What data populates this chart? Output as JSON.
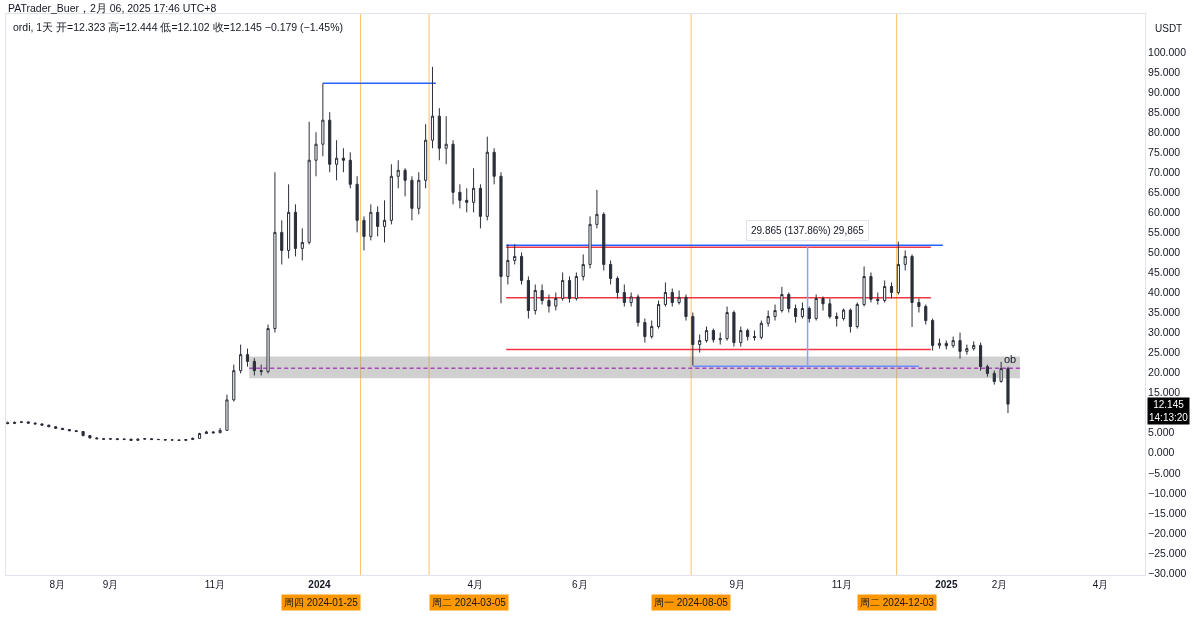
{
  "chart_data": {
    "type": "candlestick",
    "title": "PATrader_Buer，2月 06, 2025 17:46 UTC+8",
    "subtitle": "ordi, 1天 开=12.323 高=12.444 低=12.102 收=12.145 −0.179 (−1.45%)",
    "ylabel": "USDT",
    "color": "#2a2e39",
    "marker": "none",
    "x": [
      "2023-07-03",
      "2023-07-07",
      "2023-07-11",
      "2023-07-15",
      "2023-07-19",
      "2023-07-23",
      "2023-07-27",
      "2023-07-31",
      "2023-08-04",
      "2023-08-08",
      "2023-08-12",
      "2023-08-16",
      "2023-08-20",
      "2023-08-24",
      "2023-08-28",
      "2023-09-01",
      "2023-09-05",
      "2023-09-09",
      "2023-09-13",
      "2023-09-17",
      "2023-09-21",
      "2023-09-25",
      "2023-09-29",
      "2023-10-03",
      "2023-10-07",
      "2023-10-11",
      "2023-10-15",
      "2023-10-19",
      "2023-10-23",
      "2023-10-27",
      "2023-10-31",
      "2023-11-04",
      "2023-11-08",
      "2023-11-12",
      "2023-11-16",
      "2023-11-20",
      "2023-11-24",
      "2023-11-28",
      "2023-12-02",
      "2023-12-06",
      "2023-12-10",
      "2023-12-14",
      "2023-12-18",
      "2023-12-22",
      "2023-12-26",
      "2023-12-30",
      "2024-01-03",
      "2024-01-07",
      "2024-01-11",
      "2024-01-15",
      "2024-01-19",
      "2024-01-23",
      "2024-01-27",
      "2024-01-31",
      "2024-02-04",
      "2024-02-08",
      "2024-02-12",
      "2024-02-16",
      "2024-02-20",
      "2024-02-24",
      "2024-02-28",
      "2024-03-03",
      "2024-03-07",
      "2024-03-11",
      "2024-03-15",
      "2024-03-19",
      "2024-03-23",
      "2024-03-27",
      "2024-03-31",
      "2024-04-04",
      "2024-04-08",
      "2024-04-12",
      "2024-04-16",
      "2024-04-20",
      "2024-04-24",
      "2024-04-28",
      "2024-05-02",
      "2024-05-06",
      "2024-05-10",
      "2024-05-14",
      "2024-05-18",
      "2024-05-22",
      "2024-05-26",
      "2024-05-30",
      "2024-06-03",
      "2024-06-07",
      "2024-06-11",
      "2024-06-15",
      "2024-06-19",
      "2024-06-23",
      "2024-06-27",
      "2024-07-01",
      "2024-07-05",
      "2024-07-09",
      "2024-07-13",
      "2024-07-17",
      "2024-07-21",
      "2024-07-25",
      "2024-07-29",
      "2024-08-02",
      "2024-08-06",
      "2024-08-10",
      "2024-08-14",
      "2024-08-18",
      "2024-08-22",
      "2024-08-26",
      "2024-08-30",
      "2024-09-03",
      "2024-09-07",
      "2024-09-11",
      "2024-09-15",
      "2024-09-19",
      "2024-09-23",
      "2024-09-27",
      "2024-10-01",
      "2024-10-05",
      "2024-10-09",
      "2024-10-13",
      "2024-10-17",
      "2024-10-21",
      "2024-10-25",
      "2024-10-29",
      "2024-11-02",
      "2024-11-06",
      "2024-11-10",
      "2024-11-14",
      "2024-11-18",
      "2024-11-22",
      "2024-11-26",
      "2024-11-30",
      "2024-12-04",
      "2024-12-08",
      "2024-12-12",
      "2024-12-16",
      "2024-12-20",
      "2024-12-24",
      "2024-12-28",
      "2025-01-01",
      "2025-01-05",
      "2025-01-09",
      "2025-01-13",
      "2025-01-17",
      "2025-01-21",
      "2025-01-25",
      "2025-01-29",
      "2025-02-02",
      "2025-02-06"
    ],
    "ohlc": [
      [
        7.5,
        7.8,
        7.1,
        7.3
      ],
      [
        7.3,
        7.8,
        7.2,
        7.6
      ],
      [
        7.6,
        7.9,
        7.4,
        7.7
      ],
      [
        7.7,
        7.8,
        7.3,
        7.4
      ],
      [
        7.4,
        7.6,
        7.1,
        7.2
      ],
      [
        7.2,
        7.3,
        6.8,
        6.9
      ],
      [
        6.9,
        7.0,
        6.4,
        6.5
      ],
      [
        6.5,
        6.6,
        6.0,
        6.1
      ],
      [
        6.1,
        6.2,
        5.7,
        5.8
      ],
      [
        5.8,
        5.9,
        5.4,
        5.5
      ],
      [
        5.5,
        5.7,
        5.2,
        5.3
      ],
      [
        5.3,
        5.4,
        4.1,
        4.3
      ],
      [
        4.3,
        4.4,
        3.6,
        3.7
      ],
      [
        3.7,
        3.9,
        3.4,
        3.5
      ],
      [
        3.5,
        3.7,
        3.3,
        3.4
      ],
      [
        3.4,
        3.7,
        3.3,
        3.5
      ],
      [
        3.5,
        3.6,
        3.2,
        3.3
      ],
      [
        3.3,
        3.6,
        3.2,
        3.4
      ],
      [
        3.4,
        3.5,
        3.0,
        3.1
      ],
      [
        3.1,
        3.6,
        3.0,
        3.4
      ],
      [
        3.4,
        3.7,
        3.3,
        3.5
      ],
      [
        3.5,
        3.6,
        3.2,
        3.3
      ],
      [
        3.3,
        3.5,
        3.2,
        3.3
      ],
      [
        3.3,
        3.4,
        3.1,
        3.2
      ],
      [
        3.2,
        3.3,
        3.1,
        3.2
      ],
      [
        3.2,
        3.3,
        3.0,
        3.1
      ],
      [
        3.1,
        3.4,
        3.0,
        3.3
      ],
      [
        3.3,
        3.8,
        3.2,
        3.6
      ],
      [
        3.6,
        5.0,
        3.5,
        4.8
      ],
      [
        4.8,
        5.5,
        4.7,
        5.2
      ],
      [
        5.2,
        5.4,
        4.8,
        5.0
      ],
      [
        5.0,
        6.2,
        4.9,
        5.6
      ],
      [
        5.6,
        14.5,
        5.5,
        13.2
      ],
      [
        13.2,
        22.0,
        12.8,
        20.5
      ],
      [
        20.5,
        27.0,
        19.8,
        24.5
      ],
      [
        24.5,
        26.0,
        21.5,
        22.8
      ],
      [
        22.8,
        23.6,
        19.3,
        20.5
      ],
      [
        20.5,
        22.0,
        19.3,
        20.3
      ],
      [
        20.3,
        32.0,
        19.8,
        31.0
      ],
      [
        31.0,
        70.0,
        30.0,
        55.0
      ],
      [
        55.0,
        58.0,
        47.0,
        50.5
      ],
      [
        50.5,
        67.0,
        48.5,
        60.0
      ],
      [
        60.0,
        62.0,
        49.0,
        51.0
      ],
      [
        51.0,
        56.0,
        48.0,
        52.5
      ],
      [
        52.5,
        82.6,
        52.0,
        73.0
      ],
      [
        73.0,
        80.0,
        69.0,
        77.0
      ],
      [
        77.0,
        92.2,
        74.0,
        83.0
      ],
      [
        83.0,
        85.0,
        70.0,
        72.0
      ],
      [
        72.0,
        78.0,
        68.0,
        73.5
      ],
      [
        73.5,
        76.0,
        70.0,
        73.0
      ],
      [
        73.0,
        75.0,
        66.0,
        67.0
      ],
      [
        67.0,
        69.0,
        55.0,
        58.0
      ],
      [
        58.0,
        59.0,
        50.5,
        54.0
      ],
      [
        54.0,
        62.0,
        53.0,
        60.0
      ],
      [
        60.0,
        61.5,
        54.0,
        56.5
      ],
      [
        56.5,
        63.0,
        52.5,
        58.0
      ],
      [
        58.0,
        72.0,
        57.0,
        69.0
      ],
      [
        69.0,
        73.0,
        66.0,
        70.5
      ],
      [
        70.5,
        71.0,
        64.0,
        68.0
      ],
      [
        68.0,
        69.0,
        58.0,
        61.0
      ],
      [
        61.0,
        70.0,
        59.5,
        68.0
      ],
      [
        68.0,
        82.0,
        66.0,
        78.0
      ],
      [
        78.0,
        96.3,
        76.0,
        84.0
      ],
      [
        84.0,
        86.0,
        73.0,
        76.0
      ],
      [
        76.0,
        84.0,
        72.0,
        77.0
      ],
      [
        77.0,
        78.0,
        62.0,
        65.0
      ],
      [
        65.0,
        67.0,
        61.0,
        63.0
      ],
      [
        63.0,
        66.0,
        60.0,
        62.5
      ],
      [
        62.5,
        71.0,
        60.0,
        66.0
      ],
      [
        66.0,
        67.0,
        56.0,
        59.0
      ],
      [
        59.0,
        78.9,
        58.0,
        75.0
      ],
      [
        75.0,
        76.0,
        67.0,
        69.0
      ],
      [
        69.0,
        70.0,
        37.3,
        44.0
      ],
      [
        44.0,
        52.0,
        42.0,
        48.0
      ],
      [
        48.0,
        52.0,
        47.0,
        49.0
      ],
      [
        49.0,
        50.0,
        42.0,
        43.0
      ],
      [
        43.0,
        44.0,
        33.5,
        35.5
      ],
      [
        35.5,
        42.0,
        34.5,
        40.5
      ],
      [
        40.5,
        42.0,
        37.0,
        38.0
      ],
      [
        38.0,
        39.5,
        35.0,
        36.6
      ],
      [
        36.6,
        40.0,
        35.5,
        38.5
      ],
      [
        38.5,
        45.0,
        38.0,
        43.0
      ],
      [
        43.0,
        44.0,
        37.5,
        38.5
      ],
      [
        38.5,
        45.0,
        38.0,
        44.0
      ],
      [
        44.0,
        49.5,
        43.0,
        47.0
      ],
      [
        47.0,
        59.0,
        46.0,
        57.0
      ],
      [
        57.0,
        65.6,
        56.0,
        59.5
      ],
      [
        59.5,
        60.0,
        45.5,
        47.0
      ],
      [
        47.0,
        48.0,
        42.0,
        43.5
      ],
      [
        43.5,
        44.0,
        38.5,
        40.0
      ],
      [
        40.0,
        42.0,
        36.5,
        37.5
      ],
      [
        37.5,
        40.0,
        36.5,
        38.9
      ],
      [
        38.9,
        39.5,
        31.5,
        32.5
      ],
      [
        32.5,
        33.5,
        27.5,
        29.0
      ],
      [
        29.0,
        33.0,
        28.5,
        31.5
      ],
      [
        31.5,
        38.0,
        31.0,
        37.0
      ],
      [
        37.0,
        42.5,
        36.5,
        40.0
      ],
      [
        40.0,
        41.0,
        36.5,
        37.5
      ],
      [
        37.5,
        40.5,
        37.0,
        38.8
      ],
      [
        38.8,
        39.5,
        33.0,
        34.0
      ],
      [
        34.0,
        35.0,
        21.8,
        27.0
      ],
      [
        27.0,
        29.5,
        25.0,
        28.0
      ],
      [
        28.0,
        31.5,
        27.5,
        30.5
      ],
      [
        30.5,
        31.0,
        27.5,
        28.2
      ],
      [
        28.2,
        30.0,
        27.0,
        28.5
      ],
      [
        28.5,
        36.5,
        28.0,
        35.0
      ],
      [
        35.0,
        35.5,
        26.5,
        27.5
      ],
      [
        27.5,
        31.5,
        26.5,
        30.5
      ],
      [
        30.5,
        31.0,
        28.0,
        29.0
      ],
      [
        29.0,
        30.5,
        28.0,
        28.8
      ],
      [
        28.8,
        33.0,
        28.3,
        32.3
      ],
      [
        32.3,
        35.5,
        31.5,
        34.0
      ],
      [
        34.0,
        37.0,
        33.0,
        35.5
      ],
      [
        35.5,
        41.4,
        35.0,
        39.5
      ],
      [
        39.5,
        40.0,
        35.0,
        36.0
      ],
      [
        36.0,
        37.0,
        32.5,
        34.0
      ],
      [
        34.0,
        37.5,
        33.5,
        36.0
      ],
      [
        36.0,
        36.5,
        32.5,
        33.5
      ],
      [
        33.5,
        39.5,
        33.0,
        38.5
      ],
      [
        38.5,
        39.0,
        35.5,
        37.2
      ],
      [
        37.2,
        38.5,
        33.5,
        34.0
      ],
      [
        34.0,
        35.0,
        31.5,
        33.5
      ],
      [
        33.5,
        36.0,
        33.0,
        35.6
      ],
      [
        35.6,
        36.0,
        30.0,
        31.5
      ],
      [
        31.5,
        37.5,
        31.0,
        37.0
      ],
      [
        37.0,
        46.5,
        36.5,
        44.0
      ],
      [
        44.0,
        45.0,
        37.5,
        38.3
      ],
      [
        38.3,
        40.0,
        37.0,
        38.0
      ],
      [
        38.0,
        43.0,
        37.5,
        41.5
      ],
      [
        41.5,
        42.5,
        38.5,
        40.0
      ],
      [
        40.0,
        52.7,
        39.5,
        47.0
      ],
      [
        47.0,
        50.5,
        45.5,
        49.0
      ],
      [
        49.0,
        49.5,
        31.4,
        37.5
      ],
      [
        37.5,
        38.5,
        35.0,
        36.5
      ],
      [
        36.5,
        37.0,
        32.0,
        33.0
      ],
      [
        33.0,
        33.5,
        25.5,
        26.8
      ],
      [
        26.8,
        28.5,
        26.0,
        27.3
      ],
      [
        27.3,
        28.0,
        25.8,
        26.7
      ],
      [
        26.7,
        29.0,
        26.2,
        28.0
      ],
      [
        28.0,
        30.0,
        23.5,
        25.3
      ],
      [
        25.3,
        27.0,
        24.5,
        26.0
      ],
      [
        26.0,
        27.8,
        25.5,
        26.8
      ],
      [
        26.8,
        27.5,
        20.5,
        21.5
      ],
      [
        21.5,
        22.0,
        19.0,
        19.8
      ],
      [
        19.8,
        20.5,
        17.0,
        17.8
      ],
      [
        17.8,
        22.7,
        17.5,
        21.0
      ],
      [
        21.0,
        21.5,
        9.9,
        12.145
      ]
    ],
    "series": [
      {
        "type": "line",
        "name": "ob",
        "x": [
          "2023-11-21",
          "2025-02-13"
        ],
        "values": [
          21.1,
          21.1
        ],
        "lower": [
          18.6,
          18.6
        ],
        "upper": [
          24.0,
          24.0
        ],
        "color": "#ab47bc",
        "line_style": "dashed"
      },
      {
        "type": "line",
        "x": [
          "2024-01-03",
          "2024-03-09"
        ],
        "values": [
          92.2,
          92.2
        ],
        "color": "#2962ff"
      },
      {
        "type": "line",
        "x": [
          "2024-04-19",
          "2024-12-23"
        ],
        "values": [
          51.3,
          51.3
        ],
        "color": "#f23645"
      },
      {
        "type": "line",
        "x": [
          "2024-04-19",
          "2024-12-30"
        ],
        "values": [
          51.8,
          51.8
        ],
        "color": "#2962ff"
      },
      {
        "type": "line",
        "x": [
          "2024-04-19",
          "2024-12-23"
        ],
        "values": [
          38.7,
          38.7
        ],
        "color": "#f23645"
      },
      {
        "type": "line",
        "x": [
          "2024-04-19",
          "2024-12-23"
        ],
        "values": [
          25.8,
          25.8
        ],
        "color": "#f23645"
      },
      {
        "type": "line",
        "x": [
          "2024-08-06",
          "2024-12-16"
        ],
        "values": [
          21.6,
          21.6
        ],
        "color": "#6d8bff"
      },
      {
        "type": "line",
        "x": [
          "2024-10-12",
          "2024-10-12"
        ],
        "values": [
          21.7,
          51.5
        ],
        "color": "#8c9eff"
      }
    ],
    "ref_lines": [
      {
        "axis": "x",
        "value": "2024-01-25",
        "label": "周四 2024-01-25",
        "color": "#ff9800"
      },
      {
        "axis": "x",
        "value": "2024-03-05",
        "label": "周二 2024-03-05",
        "color": "#ff9800"
      },
      {
        "axis": "x",
        "value": "2024-08-05",
        "label": "周一 2024-08-05",
        "color": "#ff9800"
      },
      {
        "axis": "x",
        "value": "2024-12-03",
        "label": "周二 2024-12-03",
        "color": "#ff9800"
      }
    ],
    "annotations": [
      {
        "text": "29.865 (137.86%) 29,865",
        "x": "2024-10-12",
        "y": 51.5
      },
      "12.145\n14:13:20"
    ],
    "xlim": [
      "2023-07-02",
      "2025-04-27"
    ],
    "xticks": [
      {
        "value": "2023-08-01",
        "label": "8月"
      },
      {
        "value": "2023-09-01",
        "label": "9月"
      },
      {
        "value": "2023-11-01",
        "label": "11月"
      },
      {
        "value": "2024-01-01",
        "label": "2024"
      },
      {
        "value": "2024-04-01",
        "label": "4月"
      },
      {
        "value": "2024-06-01",
        "label": "6月"
      },
      {
        "value": "2024-09-01",
        "label": "9月"
      },
      {
        "value": "2024-11-01",
        "label": "11月"
      },
      {
        "value": "2025-01-01",
        "label": "2025"
      },
      {
        "value": "2025-02-01",
        "label": "2月"
      },
      {
        "value": "2025-04-01",
        "label": "4月"
      }
    ],
    "ylim": [
      -30.5,
      109.5
    ],
    "yticks": [
      {
        "value": -30,
        "label": "−30.000"
      },
      {
        "value": -25,
        "label": "−25.000"
      },
      {
        "value": -20,
        "label": "−20.000"
      },
      {
        "value": -15,
        "label": "−15.000"
      },
      {
        "value": -10,
        "label": "−10.000"
      },
      {
        "value": -5,
        "label": "−5.000"
      },
      {
        "value": 0,
        "label": "0.000"
      },
      {
        "value": 5,
        "label": "5.000"
      },
      {
        "value": 15,
        "label": "15.000"
      },
      {
        "value": 20,
        "label": "20.000"
      },
      {
        "value": 25,
        "label": "25.000"
      },
      {
        "value": 30,
        "label": "30.000"
      },
      {
        "value": 35,
        "label": "35.000"
      },
      {
        "value": 40,
        "label": "40.000"
      },
      {
        "value": 45,
        "label": "45.000"
      },
      {
        "value": 50,
        "label": "50.000"
      },
      {
        "value": 55,
        "label": "55.000"
      },
      {
        "value": 60,
        "label": "60.000"
      },
      {
        "value": 65,
        "label": "65.000"
      },
      {
        "value": 70,
        "label": "70.000"
      },
      {
        "value": 75,
        "label": "75.000"
      },
      {
        "value": 80,
        "label": "80.000"
      },
      {
        "value": 85,
        "label": "85.000"
      },
      {
        "value": 90,
        "label": "90.000"
      },
      {
        "value": 95,
        "label": "95.000"
      },
      {
        "value": 100,
        "label": "100.000"
      }
    ]
  }
}
